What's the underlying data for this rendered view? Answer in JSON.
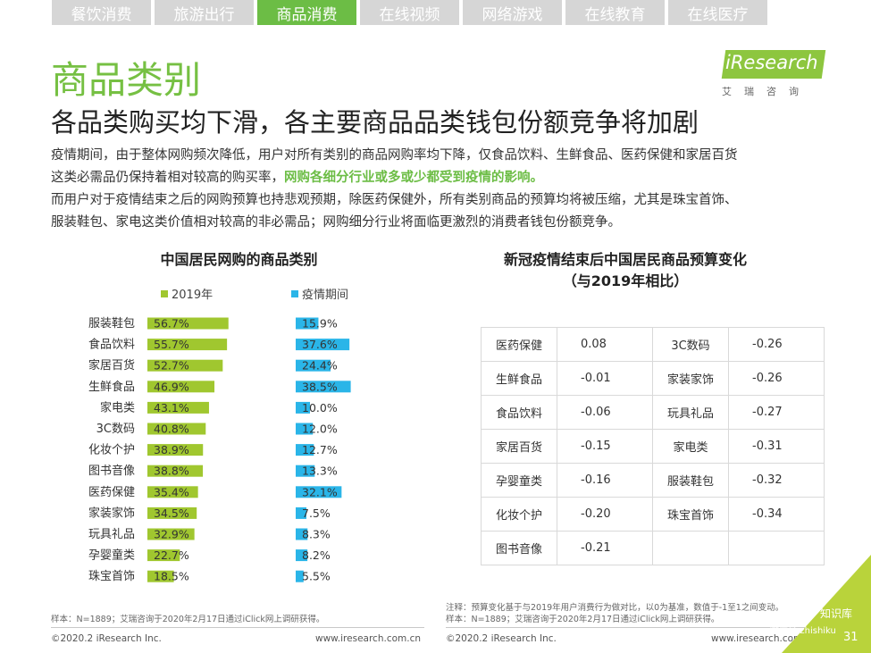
{
  "tabs": [
    "餐饮消费",
    "旅游出行",
    "商品消费",
    "在线视频",
    "网络游戏",
    "在线教育",
    "在线医疗"
  ],
  "active_tab": 2,
  "title": "商品类别",
  "logo": {
    "text": "iResearch",
    "sub": "艾瑞咨询"
  },
  "subtitle": "各品类购买均下滑，各主要商品品类钱包份额竞争将加剧",
  "para": {
    "l1": "疫情期间，由于整体网购频次降低，用户对所有类别的商品网购率均下降，仅食品饮料、生鲜食品、医药保健和家居百货",
    "l2a": "这类必需品仍保持着相对较高的购买率，",
    "l2b": "网购各细分行业或多或少都受到疫情的影响。",
    "l3": "而用户对于疫情结束之后的网购预算也持悲观预期，除医药保健外，所有类别商品的预算均将被压缩，尤其是珠宝首饰、",
    "l4": "服装鞋包、家电这类价值相对较高的非必需品；网购细分行业将面临更激烈的消费者钱包份额竞争。"
  },
  "colors": {
    "green": "#a0c72f",
    "blue": "#2ab5e8",
    "accent": "#6cbd45"
  },
  "chart_data": [
    {
      "type": "bar",
      "title": "中国居民网购的商品类别",
      "categories": [
        "服装鞋包",
        "食品饮料",
        "家居百货",
        "生鲜食品",
        "家电类",
        "3C数码",
        "化妆个护",
        "图书音像",
        "医药保健",
        "家装家饰",
        "玩具礼品",
        "孕婴童类",
        "珠宝首饰"
      ],
      "series": [
        {
          "name": "2019年",
          "values": [
            56.7,
            55.7,
            52.7,
            46.9,
            43.1,
            40.8,
            38.9,
            38.8,
            35.4,
            34.5,
            32.9,
            22.7,
            18.5
          ]
        },
        {
          "name": "疫情期间",
          "values": [
            15.9,
            37.6,
            24.4,
            38.5,
            10.0,
            12.0,
            12.7,
            13.3,
            32.1,
            7.5,
            8.3,
            8.2,
            5.5
          ]
        }
      ],
      "labels_2019": [
        "56.7%",
        "55.7%",
        "52.7%",
        "46.9%",
        "43.1%",
        "40.8%",
        "38.9%",
        "38.8%",
        "35.4%",
        "34.5%",
        "32.9%",
        "22.7%",
        "18.5%"
      ],
      "labels_epidemic": [
        "15.9%",
        "37.6%",
        "24.4%",
        "38.5%",
        "10.0%",
        "12.0%",
        "12.7%",
        "13.3%",
        "32.1%",
        "7.5%",
        "8.3%",
        "8.2%",
        "5.5%"
      ],
      "legend_placement": "top"
    },
    {
      "type": "table",
      "title_l1": "新冠疫情结束后中国居民商品预算变化",
      "title_l2": "（与2019年相比）",
      "rows": [
        [
          "医药保健",
          "0.08",
          "3C数码",
          "-0.26"
        ],
        [
          "生鲜食品",
          "-0.01",
          "家装家饰",
          "-0.26"
        ],
        [
          "食品饮料",
          "-0.06",
          "玩具礼品",
          "-0.27"
        ],
        [
          "家居百货",
          "-0.15",
          "家电类",
          "-0.31"
        ],
        [
          "孕婴童类",
          "-0.16",
          "服装鞋包",
          "-0.32"
        ],
        [
          "化妆个护",
          "-0.20",
          "珠宝首饰",
          "-0.34"
        ],
        [
          "图书音像",
          "-0.21",
          "",
          ""
        ]
      ]
    }
  ],
  "notes": {
    "left_sample": "样本：N=1889；艾瑞咨询于2020年2月17日通过iClick网上调研获得。",
    "right_note": "注释：预算变化基于与2019年用户消费行为做对比，以0为基准，数值于-1至1之间变动。",
    "right_sample": "样本：N=1889；艾瑞咨询于2020年2月17日通过iClick网上调研获得。"
  },
  "footer": {
    "copyright": "©2020.2 iResearch Inc.",
    "url": "www.iresearch.com.cn",
    "page": "31"
  },
  "watermark": {
    "a": "知识库",
    "b": "微信号:zhishiku"
  }
}
